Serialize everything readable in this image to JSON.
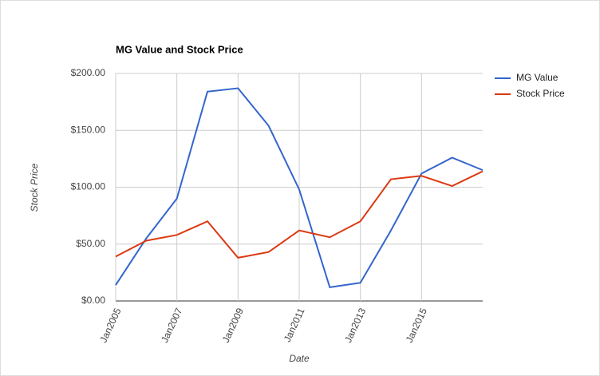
{
  "chart_data": {
    "type": "line",
    "title": "MG Value and Stock Price",
    "y_label": "Stock Price",
    "x_label": "Date",
    "categories": [
      "Jan2005",
      null,
      "Jan2007",
      null,
      "Jan2009",
      null,
      "Jan2011",
      null,
      "Jan2013",
      null,
      "Jan2015",
      null,
      null
    ],
    "series": [
      {
        "name": "MG Value",
        "color": "#3366cc",
        "values": [
          14,
          55,
          90,
          184,
          187,
          154,
          98,
          12,
          16,
          62,
          112,
          126,
          115
        ]
      },
      {
        "name": "Stock Price",
        "color": "#dc3912",
        "values": [
          39,
          53,
          58,
          70,
          38,
          43,
          62,
          56,
          70,
          107,
          110,
          101,
          114
        ]
      }
    ],
    "ylim": [
      0,
      200
    ],
    "yticks": [
      {
        "value": 0,
        "label": "$0.00"
      },
      {
        "value": 50,
        "label": "$50.00"
      },
      {
        "value": 100,
        "label": "$100.00"
      },
      {
        "value": 150,
        "label": "$150.00"
      },
      {
        "value": 200,
        "label": "$200.00"
      }
    ],
    "grid": true,
    "legend": "right"
  }
}
